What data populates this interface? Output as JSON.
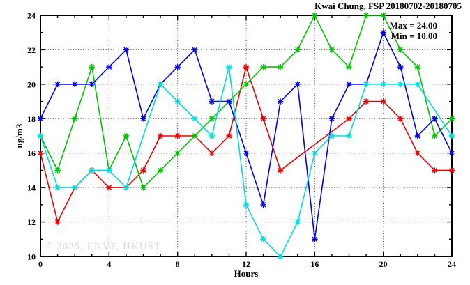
{
  "title": "Kwai Chung, FSP 20180702-20180705",
  "legend": {
    "max_label": "Max = 24.00",
    "min_label": "Min = 10.00"
  },
  "watermark": "© 2025, ENVF, HKUST",
  "chart_data": {
    "type": "line",
    "title": "Kwai Chung, FSP 20180702-20180705",
    "xlabel": "Hours",
    "ylabel": "ug/m3",
    "xlim": [
      0,
      24
    ],
    "ylim": [
      10,
      24
    ],
    "xticks": [
      0,
      4,
      8,
      12,
      16,
      20,
      24
    ],
    "yticks": [
      10,
      12,
      14,
      16,
      18,
      20,
      22,
      24
    ],
    "grid": true,
    "legend_position": "top-right-inside",
    "annotations": [
      "Max = 24.00",
      "Min = 10.00"
    ],
    "marker": "asterisk",
    "x": [
      0,
      1,
      2,
      3,
      4,
      5,
      6,
      7,
      8,
      9,
      10,
      11,
      12,
      13,
      14,
      15,
      16,
      17,
      18,
      19,
      20,
      21,
      22,
      23,
      24
    ],
    "series": [
      {
        "name": "red-series",
        "color": "#ee0000",
        "values": [
          16,
          12,
          14,
          15,
          14,
          14,
          15,
          17,
          17,
          17,
          16,
          17,
          21,
          18,
          15,
          null,
          null,
          null,
          18,
          19,
          19,
          18,
          16,
          15,
          15
        ]
      },
      {
        "name": "green-series",
        "color": "#00c400",
        "values": [
          17,
          15,
          18,
          21,
          15,
          17,
          14,
          15,
          16,
          17,
          18,
          19,
          20,
          21,
          21,
          22,
          24,
          22,
          21,
          24,
          24,
          22,
          21,
          17,
          18
        ]
      },
      {
        "name": "blue-series",
        "color": "#0000ee",
        "values": [
          18,
          20,
          20,
          20,
          21,
          22,
          18,
          20,
          21,
          22,
          19,
          19,
          16,
          13,
          19,
          20,
          11,
          18,
          20,
          20,
          23,
          21,
          17,
          18,
          16
        ]
      },
      {
        "name": "cyan-series",
        "color": "#00dddd",
        "values": [
          17,
          14,
          14,
          15,
          15,
          14,
          null,
          20,
          19,
          18,
          17,
          21,
          13,
          11,
          10,
          12,
          16,
          17,
          17,
          20,
          20,
          20,
          20,
          null,
          17
        ]
      }
    ]
  }
}
